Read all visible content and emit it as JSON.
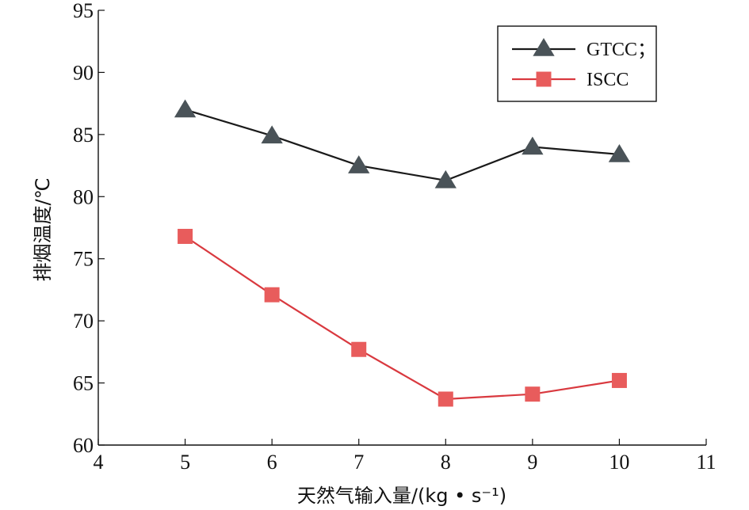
{
  "chart_data": {
    "type": "line",
    "xlabel": "天然气输入量/(kg • s⁻¹)",
    "ylabel": "排烟温度/℃",
    "xlim": [
      4,
      11
    ],
    "ylim": [
      60,
      95
    ],
    "xticks": [
      4,
      5,
      6,
      7,
      8,
      9,
      10,
      11
    ],
    "yticks": [
      60,
      65,
      70,
      75,
      80,
      85,
      90,
      95
    ],
    "grid": false,
    "legend_position": "top-right",
    "series": [
      {
        "name": "GTCC；",
        "marker": "triangle",
        "line_color": "#1a1a1a",
        "marker_color": "#4a5358",
        "x": [
          5,
          6,
          7,
          8,
          9,
          10
        ],
        "y": [
          87.0,
          84.9,
          82.5,
          81.3,
          84.0,
          83.4
        ]
      },
      {
        "name": "ISCC",
        "marker": "square",
        "line_color": "#d9393f",
        "marker_color": "#e85c5c",
        "x": [
          5,
          6,
          7,
          8,
          9,
          10
        ],
        "y": [
          76.8,
          72.1,
          67.7,
          63.7,
          64.1,
          65.2
        ]
      }
    ]
  }
}
